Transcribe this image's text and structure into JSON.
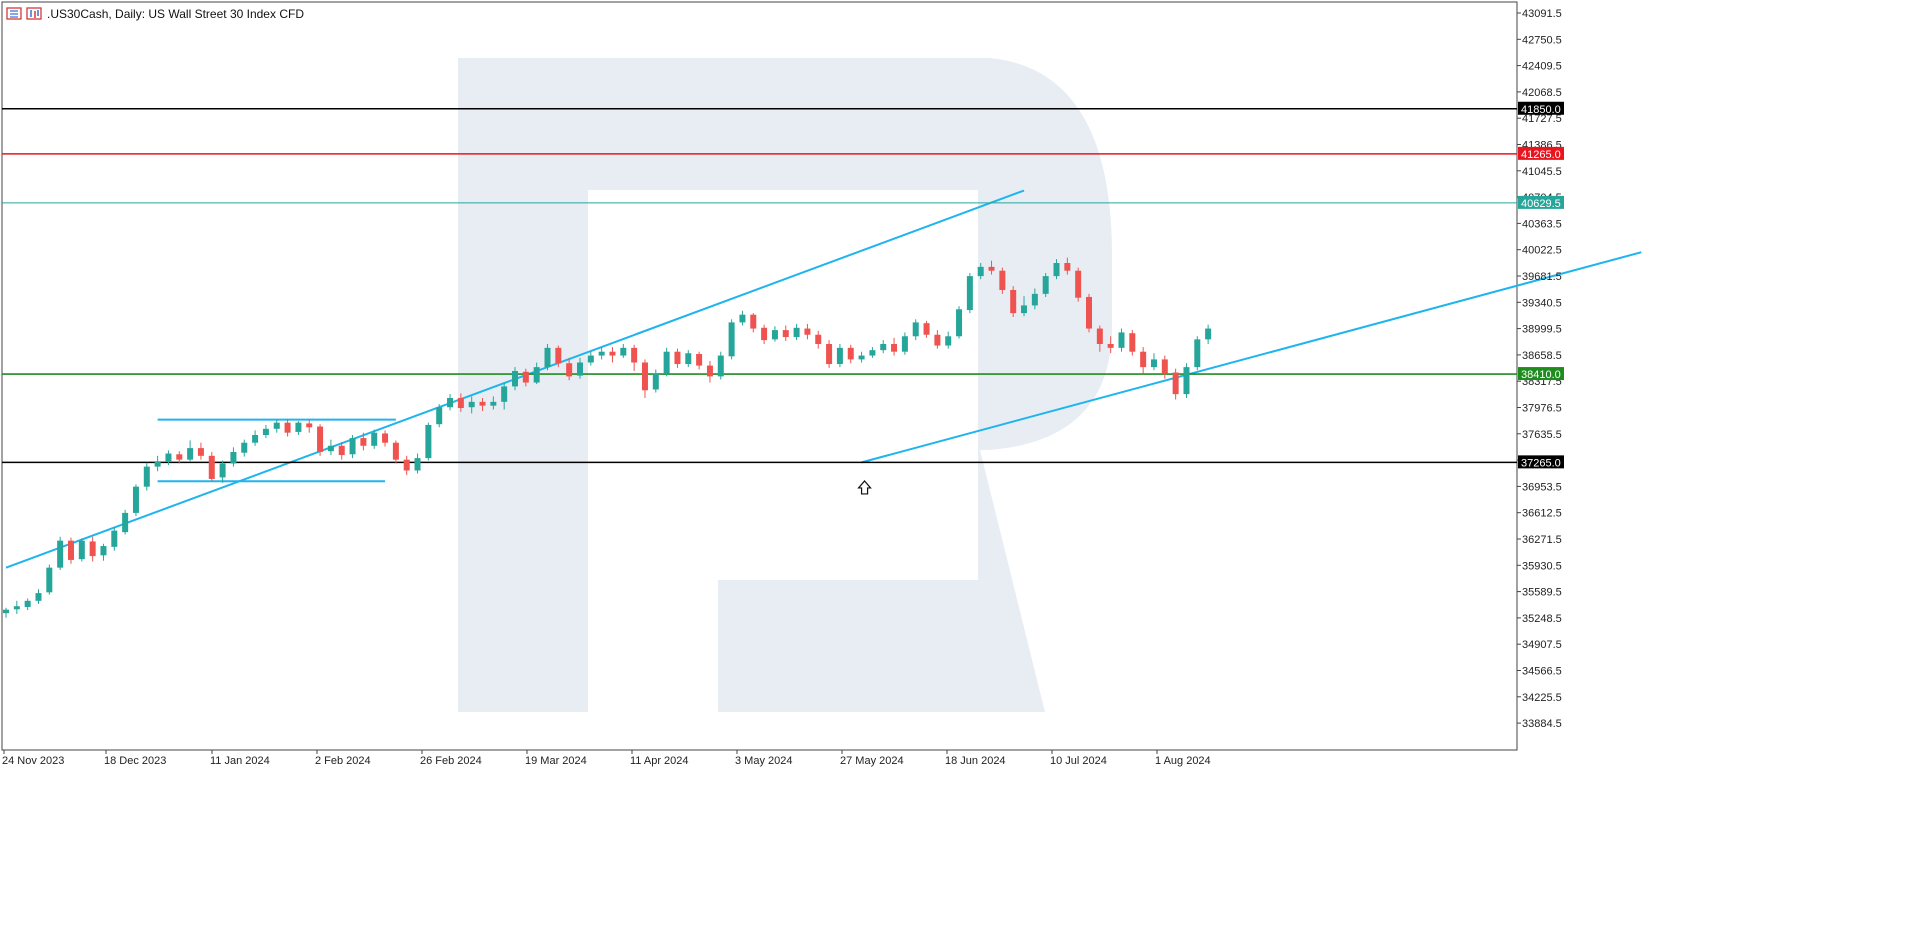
{
  "header": {
    "symbol_title": ".US30Cash, Daily:  US Wall Street 30 Index CFD",
    "icons": [
      "menu-icon",
      "chart-type-icon"
    ]
  },
  "colors": {
    "bull": "#26a69a",
    "bear": "#ef5350",
    "trendline": "#1eb4ee",
    "resistance_black": "#000000",
    "resistance_red": "#e8141e",
    "support_green": "#1f8c1f",
    "current_price": "#26a69a",
    "watermark": "#e8edf4"
  },
  "chart_data": {
    "type": "candlestick",
    "title": ".US30Cash, Daily:  US Wall Street 30 Index CFD",
    "y_range": [
      33600,
      43200
    ],
    "x_tick_labels": [
      "24 Nov 2023",
      "18 Dec 2023",
      "11 Jan 2024",
      "2 Feb 2024",
      "26 Feb 2024",
      "19 Mar 2024",
      "11 Apr 2024",
      "3 May 2024",
      "27 May 2024",
      "18 Jun 2024",
      "10 Jul 2024",
      "1 Aug 2024"
    ],
    "y_tick_labels": [
      "43091.5",
      "42750.5",
      "42409.5",
      "42068.5",
      "41727.5",
      "41386.5",
      "41045.5",
      "40704.5",
      "40363.5",
      "40022.5",
      "39681.5",
      "39340.5",
      "38999.5",
      "38658.5",
      "38317.5",
      "37976.5",
      "37635.5",
      "37294.5",
      "36953.5",
      "36612.5",
      "36271.5",
      "35930.5",
      "35589.5",
      "35248.5",
      "34907.5",
      "34566.5",
      "34225.5",
      "33884.5"
    ],
    "y_ticks": [
      43091.5,
      42750.5,
      42409.5,
      42068.5,
      41727.5,
      41386.5,
      41045.5,
      40704.5,
      40363.5,
      40022.5,
      39681.5,
      39340.5,
      38999.5,
      38658.5,
      38317.5,
      37976.5,
      37635.5,
      37294.5,
      36953.5,
      36612.5,
      36271.5,
      35930.5,
      35589.5,
      35248.5,
      34907.5,
      34566.5,
      34225.5,
      33884.5
    ],
    "horizontal_levels": [
      {
        "price": 41850.0,
        "label": "41850.0",
        "color": "#000000"
      },
      {
        "price": 41265.0,
        "label": "41265.0",
        "color": "#e8141e"
      },
      {
        "price": 40629.5,
        "label": "40629.5",
        "color": "#26a69a"
      },
      {
        "price": 38410.0,
        "label": "38410.0",
        "color": "#1f8c1f"
      },
      {
        "price": 37265.0,
        "label": "37265.0",
        "color": "#000000"
      }
    ],
    "trendlines": [
      {
        "from": [
          0,
          35900
        ],
        "to": [
          94,
          40790
        ]
      },
      {
        "from": [
          79,
          37265
        ],
        "to": [
          151,
          39990
        ]
      },
      {
        "from": [
          14,
          37820
        ],
        "to": [
          36,
          37820
        ]
      },
      {
        "from": [
          14,
          37020
        ],
        "to": [
          35,
          37020
        ]
      }
    ],
    "arrow_marker": {
      "index": 79,
      "price": 37050
    },
    "candles": [
      [
        35310,
        35355,
        35380,
        35250
      ],
      [
        35360,
        35400,
        35470,
        35300
      ],
      [
        35390,
        35470,
        35500,
        35350
      ],
      [
        35470,
        35570,
        35620,
        35430
      ],
      [
        35580,
        35900,
        35940,
        35550
      ],
      [
        35900,
        36250,
        36300,
        35870
      ],
      [
        36250,
        36000,
        36290,
        35950
      ],
      [
        36010,
        36250,
        36280,
        35980
      ],
      [
        36240,
        36050,
        36300,
        35980
      ],
      [
        36060,
        36180,
        36210,
        35990
      ],
      [
        36170,
        36380,
        36420,
        36120
      ],
      [
        36360,
        36610,
        36650,
        36330
      ],
      [
        36610,
        36950,
        36980,
        36570
      ],
      [
        36950,
        37210,
        37260,
        36900
      ],
      [
        37210,
        37280,
        37350,
        37150
      ],
      [
        37270,
        37380,
        37420,
        37230
      ],
      [
        37370,
        37300,
        37410,
        37250
      ],
      [
        37300,
        37450,
        37550,
        37280
      ],
      [
        37450,
        37350,
        37520,
        37300
      ],
      [
        37350,
        37050,
        37400,
        37020
      ],
      [
        37070,
        37250,
        37290,
        37000
      ],
      [
        37250,
        37400,
        37460,
        37210
      ],
      [
        37390,
        37520,
        37560,
        37340
      ],
      [
        37520,
        37620,
        37680,
        37480
      ],
      [
        37620,
        37700,
        37750,
        37580
      ],
      [
        37700,
        37780,
        37820,
        37650
      ],
      [
        37780,
        37650,
        37830,
        37600
      ],
      [
        37660,
        37780,
        37800,
        37620
      ],
      [
        37770,
        37720,
        37820,
        37650
      ],
      [
        37730,
        37400,
        37760,
        37350
      ],
      [
        37410,
        37480,
        37560,
        37360
      ],
      [
        37480,
        37360,
        37530,
        37300
      ],
      [
        37370,
        37580,
        37620,
        37320
      ],
      [
        37580,
        37480,
        37650,
        37420
      ],
      [
        37480,
        37650,
        37690,
        37440
      ],
      [
        37640,
        37520,
        37680,
        37470
      ],
      [
        37520,
        37300,
        37550,
        37250
      ],
      [
        37300,
        37160,
        37350,
        37100
      ],
      [
        37160,
        37320,
        37380,
        37120
      ],
      [
        37320,
        37750,
        37780,
        37290
      ],
      [
        37760,
        37980,
        38020,
        37720
      ],
      [
        37980,
        38100,
        38150,
        37940
      ],
      [
        38100,
        37970,
        38160,
        37920
      ],
      [
        37980,
        38050,
        38120,
        37900
      ],
      [
        38050,
        38000,
        38100,
        37930
      ],
      [
        38000,
        38050,
        38120,
        37950
      ],
      [
        38050,
        38250,
        38300,
        37950
      ],
      [
        38250,
        38450,
        38500,
        38200
      ],
      [
        38440,
        38300,
        38480,
        38250
      ],
      [
        38300,
        38500,
        38560,
        38280
      ],
      [
        38500,
        38750,
        38800,
        38460
      ],
      [
        38750,
        38550,
        38780,
        38500
      ],
      [
        38550,
        38380,
        38620,
        38330
      ],
      [
        38390,
        38560,
        38620,
        38350
      ],
      [
        38560,
        38650,
        38700,
        38520
      ],
      [
        38650,
        38700,
        38760,
        38600
      ],
      [
        38700,
        38650,
        38760,
        38560
      ],
      [
        38650,
        38750,
        38800,
        38620
      ],
      [
        38750,
        38560,
        38790,
        38450
      ],
      [
        38560,
        38200,
        38600,
        38100
      ],
      [
        38210,
        38420,
        38470,
        38170
      ],
      [
        38420,
        38700,
        38750,
        38380
      ],
      [
        38700,
        38540,
        38740,
        38490
      ],
      [
        38540,
        38680,
        38720,
        38500
      ],
      [
        38670,
        38520,
        38700,
        38470
      ],
      [
        38520,
        38380,
        38580,
        38300
      ],
      [
        38380,
        38650,
        38700,
        38340
      ],
      [
        38640,
        39080,
        39120,
        38600
      ],
      [
        39080,
        39180,
        39230,
        39040
      ],
      [
        39180,
        39000,
        39200,
        38950
      ],
      [
        39010,
        38850,
        39050,
        38800
      ],
      [
        38860,
        38980,
        39030,
        38830
      ],
      [
        38980,
        38890,
        39040,
        38840
      ],
      [
        38890,
        39010,
        39060,
        38850
      ],
      [
        39000,
        38920,
        39060,
        38860
      ],
      [
        38920,
        38800,
        38970,
        38740
      ],
      [
        38800,
        38540,
        38850,
        38490
      ],
      [
        38540,
        38750,
        38800,
        38500
      ],
      [
        38750,
        38600,
        38790,
        38550
      ],
      [
        38600,
        38650,
        38700,
        38560
      ],
      [
        38650,
        38720,
        38760,
        38620
      ],
      [
        38720,
        38800,
        38850,
        38680
      ],
      [
        38800,
        38700,
        38880,
        38650
      ],
      [
        38700,
        38900,
        38950,
        38660
      ],
      [
        38900,
        39080,
        39120,
        38850
      ],
      [
        39070,
        38920,
        39100,
        38880
      ],
      [
        38920,
        38780,
        38980,
        38740
      ],
      [
        38780,
        38900,
        38960,
        38740
      ],
      [
        38900,
        39250,
        39290,
        38870
      ],
      [
        39240,
        39680,
        39720,
        39200
      ],
      [
        39680,
        39800,
        39850,
        39640
      ],
      [
        39800,
        39750,
        39880,
        39700
      ],
      [
        39750,
        39500,
        39790,
        39450
      ],
      [
        39500,
        39200,
        39550,
        39150
      ],
      [
        39200,
        39300,
        39420,
        39160
      ],
      [
        39300,
        39450,
        39520,
        39250
      ],
      [
        39450,
        39680,
        39720,
        39410
      ],
      [
        39680,
        39850,
        39900,
        39640
      ],
      [
        39850,
        39750,
        39920,
        39700
      ],
      [
        39750,
        39400,
        39790,
        39350
      ],
      [
        39410,
        39000,
        39450,
        38950
      ],
      [
        39000,
        38800,
        39040,
        38700
      ],
      [
        38800,
        38750,
        38900,
        38680
      ],
      [
        38750,
        38950,
        39000,
        38700
      ],
      [
        38940,
        38700,
        38980,
        38650
      ],
      [
        38700,
        38500,
        38760,
        38420
      ],
      [
        38500,
        38600,
        38680,
        38460
      ],
      [
        38600,
        38420,
        38650,
        38350
      ],
      [
        38430,
        38150,
        38480,
        38080
      ],
      [
        38150,
        38500,
        38550,
        38100
      ],
      [
        38500,
        38860,
        38900,
        38460
      ],
      [
        38860,
        39000,
        39050,
        38800
      ]
    ]
  }
}
